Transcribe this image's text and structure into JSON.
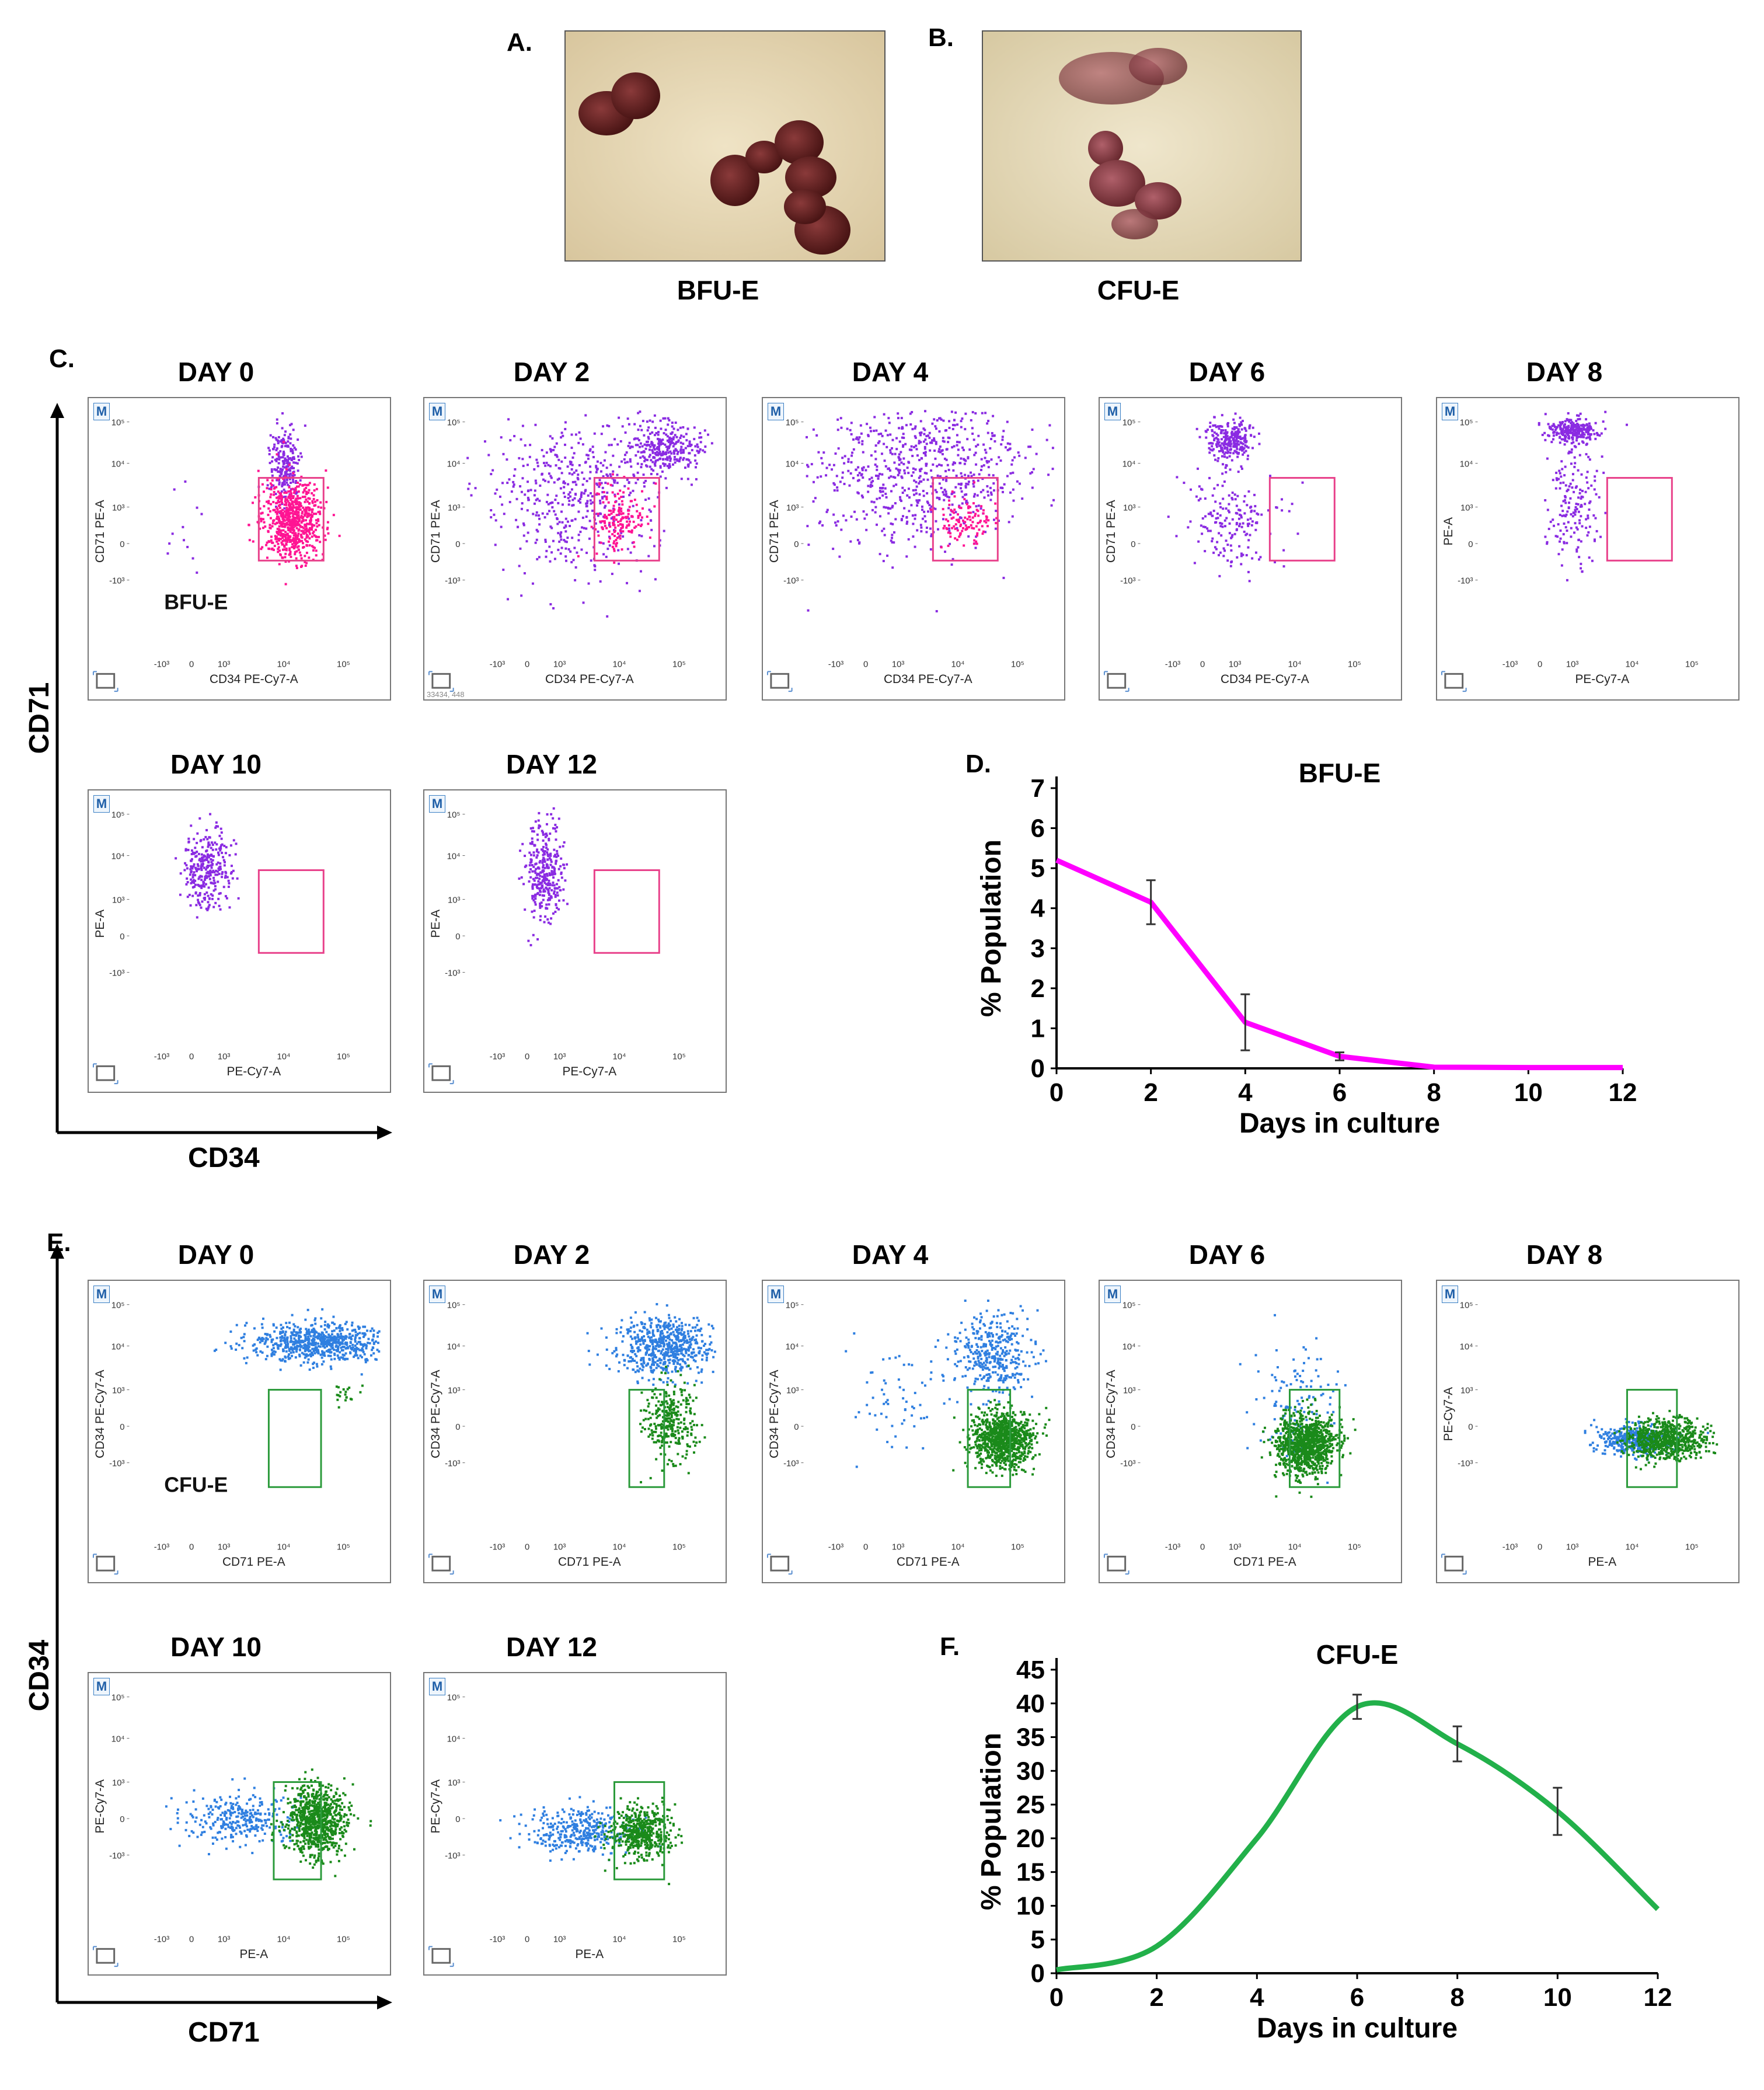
{
  "panels": {
    "A": {
      "label": "A.",
      "caption": "BFU-E"
    },
    "B": {
      "label": "B.",
      "caption": "CFU-E"
    },
    "C": {
      "label": "C.",
      "yaxis": "CD71",
      "xaxis": "CD34",
      "gate_label": "BFU-E"
    },
    "D": {
      "label": "D."
    },
    "E": {
      "label": "E.",
      "yaxis": "CD34",
      "xaxis": "CD71",
      "gate_label": "CFU-E"
    },
    "F": {
      "label": "F."
    }
  },
  "flow_common": {
    "badge": "M",
    "ticks_y": [
      "10⁵",
      "10⁴",
      "10³",
      "0",
      "-10³"
    ],
    "ticks_x": [
      "-10³",
      "0",
      "10³",
      "10⁴",
      "10⁵"
    ],
    "event_count": "33434, 448"
  },
  "flow_c": [
    {
      "day": "DAY 0",
      "ylab": "CD71 PE-A",
      "xlab": "CD34 PE-Cy7-A"
    },
    {
      "day": "DAY 2",
      "ylab": "CD71 PE-A",
      "xlab": "CD34 PE-Cy7-A"
    },
    {
      "day": "DAY 4",
      "ylab": "CD71 PE-A",
      "xlab": "CD34 PE-Cy7-A"
    },
    {
      "day": "DAY 6",
      "ylab": "CD71 PE-A",
      "xlab": "CD34 PE-Cy7-A"
    },
    {
      "day": "DAY 8",
      "ylab": "PE-A",
      "xlab": "PE-Cy7-A"
    },
    {
      "day": "DAY 10",
      "ylab": "PE-A",
      "xlab": "PE-Cy7-A"
    },
    {
      "day": "DAY 12",
      "ylab": "PE-A",
      "xlab": "PE-Cy7-A"
    }
  ],
  "flow_e": [
    {
      "day": "DAY 0",
      "ylab": "CD34 PE-Cy7-A",
      "xlab": "CD71 PE-A"
    },
    {
      "day": "DAY 2",
      "ylab": "CD34 PE-Cy7-A",
      "xlab": "CD71 PE-A"
    },
    {
      "day": "DAY 4",
      "ylab": "CD34 PE-Cy7-A",
      "xlab": "CD71 PE-A"
    },
    {
      "day": "DAY 6",
      "ylab": "CD34 PE-Cy7-A",
      "xlab": "CD71 PE-A"
    },
    {
      "day": "DAY 8",
      "ylab": "PE-Cy7-A",
      "xlab": "PE-A"
    },
    {
      "day": "DAY 10",
      "ylab": "PE-Cy7-A",
      "xlab": "PE-A"
    },
    {
      "day": "DAY 12",
      "ylab": "PE-Cy7-A",
      "xlab": "PE-A"
    }
  ],
  "colors": {
    "purple": "#8a2be2",
    "pink": "#ff1493",
    "gate_pink": "#e8408a",
    "blue": "#2f7fe0",
    "green": "#1a8a1a",
    "gate_green": "#2a9a3a",
    "line_d": "#ff00ff",
    "line_f": "#22b04a"
  },
  "chart_data": [
    {
      "type": "line",
      "title": "BFU-E",
      "xlabel": "Days in culture",
      "ylabel": "% Population",
      "x": [
        0,
        2,
        4,
        6,
        8,
        10,
        12
      ],
      "series": [
        {
          "name": "BFU-E",
          "values": [
            5.2,
            4.15,
            1.15,
            0.3,
            0.03,
            0.02,
            0.02
          ],
          "errors": [
            0,
            0.55,
            0.7,
            0.1,
            0,
            0,
            0
          ]
        }
      ],
      "xticks": [
        "0",
        "2",
        "4",
        "6",
        "8",
        "10",
        "12"
      ],
      "yticks": [
        "0",
        "1",
        "2",
        "3",
        "4",
        "5",
        "6",
        "7"
      ],
      "xlim": [
        0,
        12
      ],
      "ylim": [
        0,
        7
      ]
    },
    {
      "type": "line",
      "title": "CFU-E",
      "xlabel": "Days in culture",
      "ylabel": "% Population",
      "x": [
        0,
        2,
        4,
        6,
        8,
        10,
        12
      ],
      "series": [
        {
          "name": "CFU-E",
          "values": [
            0.5,
            4,
            20,
            39.5,
            34,
            24,
            9.5
          ],
          "errors": [
            0,
            0,
            0,
            1.8,
            2.6,
            3.5,
            0
          ]
        }
      ],
      "xticks": [
        "0",
        "2",
        "4",
        "6",
        "8",
        "10",
        "12"
      ],
      "yticks": [
        "0",
        "5",
        "10",
        "15",
        "20",
        "25",
        "30",
        "35",
        "40",
        "45"
      ],
      "xlim": [
        0,
        12
      ],
      "ylim": [
        0,
        45
      ]
    }
  ]
}
